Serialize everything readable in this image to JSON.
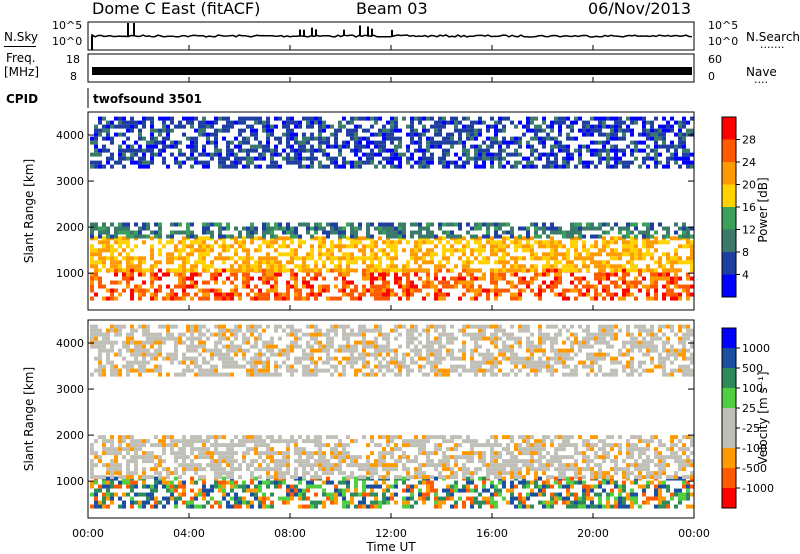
{
  "header": {
    "radar": "Dome C East (fitACF)",
    "beam": "Beam 03",
    "date": "06/Nov/2013"
  },
  "panels": {
    "noise_left_label": "N.Sky",
    "noise_right_label": "N.Search",
    "noise_right_dots": "·······",
    "noise_ticks_left": [
      "10^5",
      "10^0"
    ],
    "noise_ticks_right": [
      "10^5",
      "10^0"
    ],
    "freq_label_1": "Freq.",
    "freq_label_2": "[MHz]",
    "freq_ticks": [
      "18",
      "8"
    ],
    "nave_label": "Nave",
    "nave_dots": "····",
    "nave_ticks": [
      "60",
      "0"
    ],
    "cpid_label": "CPID",
    "cpid_value": "twofsound 3501"
  },
  "colors": {
    "power_scale": [
      "#0000ff",
      "#1f3fa0",
      "#3b7a6a",
      "#3aa05a",
      "#ffd200",
      "#ff9a00",
      "#ff5a00",
      "#ff0000"
    ],
    "velocity_scale": [
      "#ff0000",
      "#ff5a00",
      "#ff9a00",
      "#c0c0b8",
      "#c0c0b8",
      "#50d040",
      "#2e8a5a",
      "#1a4fa0",
      "#0000ff"
    ]
  },
  "chart_data": [
    {
      "type": "heatmap",
      "title": "",
      "xlabel": "",
      "ylabel": "Slant Range [km]",
      "colorbar_label": "Power [dB]",
      "colorbar_ticks": [
        "28",
        "24",
        "20",
        "16",
        "12",
        "8",
        "4"
      ],
      "x_ticks": [
        "00:00",
        "04:00",
        "08:00",
        "12:00",
        "16:00",
        "20:00",
        "00:00"
      ],
      "y_ticks": [
        "4000",
        "3000",
        "2000",
        "1000"
      ],
      "ylim": [
        200,
        4500
      ],
      "xlim": [
        "00:00",
        "24:00"
      ],
      "bands": [
        {
          "range_km": [
            450,
            1100
          ],
          "power_db": 26
        },
        {
          "range_km": [
            1100,
            1800
          ],
          "power_db": 20
        },
        {
          "range_km": [
            1800,
            2100
          ],
          "power_db": 10
        },
        {
          "range_km": [
            3300,
            4400
          ],
          "power_db": 6
        }
      ]
    },
    {
      "type": "heatmap",
      "title": "",
      "xlabel": "Time UT",
      "ylabel": "Slant Range [km]",
      "colorbar_label": "Velocity [m s⁻¹]",
      "colorbar_ticks": [
        "1000",
        "500",
        "100",
        "25",
        "-25",
        "-100",
        "-500",
        "-1000"
      ],
      "x_ticks": [
        "00:00",
        "04:00",
        "08:00",
        "12:00",
        "16:00",
        "20:00",
        "00:00"
      ],
      "y_ticks": [
        "4000",
        "3000",
        "2000",
        "1000"
      ],
      "ylim": [
        200,
        4500
      ],
      "xlim": [
        "00:00",
        "24:00"
      ],
      "bands": [
        {
          "range_km": [
            450,
            1100
          ],
          "velocity_ms": 100
        },
        {
          "range_km": [
            1100,
            2000
          ],
          "velocity_ms": 0
        },
        {
          "range_km": [
            3300,
            4400
          ],
          "velocity_ms": 0
        }
      ]
    }
  ]
}
